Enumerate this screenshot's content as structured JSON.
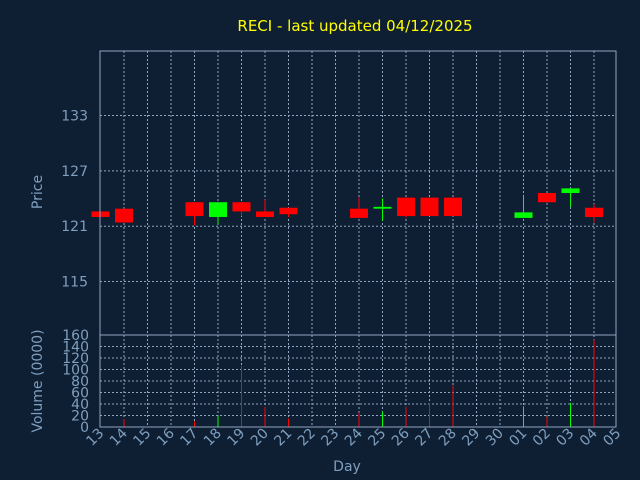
{
  "colors": {
    "background": "#0f1f33",
    "title": "#ffff00",
    "axis_text": "#7f9fbf",
    "frame": "#8fa6c2",
    "grid": "#8fa6c2",
    "up": "#00ff00",
    "down": "#ff0000"
  },
  "chart_data": [
    {
      "type": "candlestick",
      "title": "RECI - last updated 04/12/2025",
      "ylabel": "Price",
      "ylim": [
        109.2,
        140.0
      ],
      "y_ticks": [
        "115",
        "121",
        "127",
        "133"
      ],
      "y_tick_values": [
        115,
        121,
        127,
        133
      ],
      "grid": true,
      "x": [
        "13",
        "14",
        "15",
        "16",
        "17",
        "18",
        "19",
        "20",
        "21",
        "22",
        "23",
        "24",
        "25",
        "26",
        "27",
        "28",
        "29",
        "30",
        "01",
        "02",
        "03",
        "04",
        "05"
      ],
      "candles": [
        {
          "x": "13",
          "open": 122.6,
          "close": 122.0,
          "high": 122.6,
          "low": 122.0
        },
        {
          "x": "14",
          "open": 122.9,
          "close": 121.4,
          "high": 122.9,
          "low": 121.4
        },
        {
          "x": "17",
          "open": 123.6,
          "close": 122.1,
          "high": 123.6,
          "low": 121.1
        },
        {
          "x": "18",
          "open": 122.0,
          "close": 123.6,
          "high": 123.6,
          "low": 121.2
        },
        {
          "x": "19",
          "open": 123.6,
          "close": 122.6,
          "high": 123.6,
          "low": 122.1
        },
        {
          "x": "20",
          "open": 122.6,
          "close": 122.0,
          "high": 123.9,
          "low": 122.0
        },
        {
          "x": "21",
          "open": 123.0,
          "close": 122.3,
          "high": 123.0,
          "low": 122.0
        },
        {
          "x": "24",
          "open": 122.9,
          "close": 121.9,
          "high": 124.1,
          "low": 121.9
        },
        {
          "x": "25",
          "open": 122.9,
          "close": 123.1,
          "high": 124.0,
          "low": 121.6
        },
        {
          "x": "26",
          "open": 124.1,
          "close": 122.1,
          "high": 124.1,
          "low": 121.9
        },
        {
          "x": "27",
          "open": 124.1,
          "close": 122.1,
          "high": 124.1,
          "low": 122.1
        },
        {
          "x": "28",
          "open": 124.1,
          "close": 122.1,
          "high": 124.1,
          "low": 122.1
        },
        {
          "x": "01",
          "open": 121.9,
          "close": 122.5,
          "high": 124.4,
          "low": 121.9
        },
        {
          "x": "02",
          "open": 124.6,
          "close": 123.6,
          "high": 124.6,
          "low": 123.6
        },
        {
          "x": "03",
          "open": 124.6,
          "close": 125.1,
          "high": 125.1,
          "low": 123.1
        },
        {
          "x": "04",
          "open": 123.0,
          "close": 122.0,
          "high": 123.4,
          "low": 121.4
        }
      ]
    },
    {
      "type": "bar",
      "xlabel": "Day",
      "ylabel": "Volume (0000)",
      "ylim": [
        0,
        160
      ],
      "y_ticks": [
        "0",
        "20",
        "40",
        "60",
        "80",
        "100",
        "120",
        "140",
        "160"
      ],
      "y_tick_values": [
        0,
        20,
        40,
        60,
        80,
        100,
        120,
        140,
        160
      ],
      "categories": [
        "13",
        "14",
        "15",
        "16",
        "17",
        "18",
        "19",
        "20",
        "21",
        "22",
        "23",
        "24",
        "25",
        "26",
        "27",
        "28",
        "29",
        "30",
        "01",
        "02",
        "03",
        "04",
        "05"
      ],
      "values": [
        0,
        14,
        0,
        0,
        10,
        20,
        106,
        35,
        15,
        0,
        0,
        25,
        27,
        35,
        42,
        72,
        0,
        0,
        36,
        18,
        42,
        152,
        0
      ],
      "bar_colors": [
        "down",
        "down",
        "down",
        "down",
        "down",
        "up",
        "down",
        "down",
        "down",
        "down",
        "down",
        "down",
        "up",
        "down",
        "down",
        "down",
        "down",
        "down",
        "up",
        "down",
        "up",
        "down",
        "down"
      ]
    }
  ]
}
